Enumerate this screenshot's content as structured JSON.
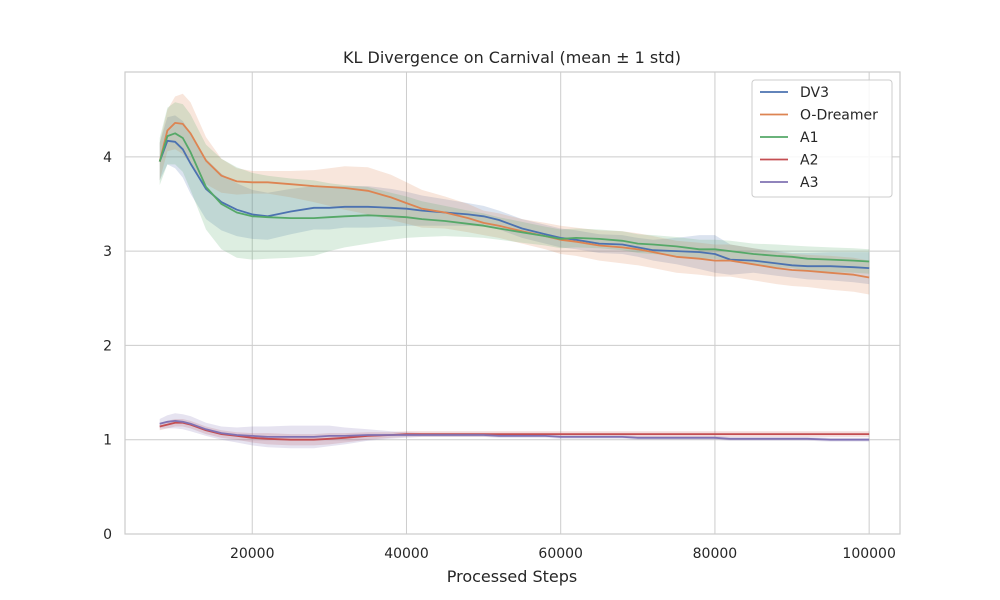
{
  "chart_data": {
    "type": "line",
    "title": "KL Divergence on Carnival (mean ± 1 std)",
    "xlabel": "Processed Steps",
    "ylabel": "",
    "xlim": [
      3500,
      104000
    ],
    "ylim": [
      0,
      4.9
    ],
    "xticks": [
      20000,
      40000,
      60000,
      80000,
      100000
    ],
    "yticks": [
      0,
      1,
      2,
      3,
      4
    ],
    "grid": true,
    "legend_position": "top-right",
    "x": [
      8000,
      9000,
      10000,
      11000,
      12000,
      14000,
      16000,
      18000,
      20000,
      22000,
      25000,
      28000,
      30000,
      32000,
      35000,
      38000,
      40000,
      42000,
      45000,
      48000,
      50000,
      52000,
      55000,
      58000,
      60000,
      62000,
      65000,
      68000,
      70000,
      72000,
      75000,
      78000,
      80000,
      82000,
      85000,
      88000,
      90000,
      92000,
      95000,
      98000,
      100000
    ],
    "series": [
      {
        "name": "DV3",
        "color": "#4c72b0",
        "values": [
          3.95,
          4.17,
          4.16,
          4.08,
          3.93,
          3.66,
          3.52,
          3.44,
          3.39,
          3.37,
          3.42,
          3.46,
          3.46,
          3.47,
          3.47,
          3.46,
          3.45,
          3.43,
          3.41,
          3.39,
          3.37,
          3.33,
          3.24,
          3.18,
          3.14,
          3.12,
          3.08,
          3.07,
          3.04,
          3.01,
          3.0,
          2.99,
          2.97,
          2.91,
          2.9,
          2.87,
          2.85,
          2.84,
          2.84,
          2.83,
          2.82
        ],
        "std": [
          0.2,
          0.25,
          0.28,
          0.3,
          0.32,
          0.32,
          0.3,
          0.28,
          0.26,
          0.25,
          0.24,
          0.23,
          0.23,
          0.22,
          0.22,
          0.2,
          0.18,
          0.16,
          0.14,
          0.12,
          0.11,
          0.1,
          0.1,
          0.1,
          0.1,
          0.1,
          0.1,
          0.1,
          0.1,
          0.11,
          0.14,
          0.18,
          0.2,
          0.16,
          0.13,
          0.13,
          0.13,
          0.14,
          0.15,
          0.16,
          0.17
        ]
      },
      {
        "name": "O-Dreamer",
        "color": "#dd8452",
        "values": [
          3.95,
          4.28,
          4.36,
          4.35,
          4.25,
          3.96,
          3.8,
          3.74,
          3.73,
          3.73,
          3.71,
          3.69,
          3.68,
          3.67,
          3.64,
          3.57,
          3.51,
          3.45,
          3.41,
          3.35,
          3.3,
          3.27,
          3.21,
          3.16,
          3.12,
          3.1,
          3.06,
          3.04,
          3.02,
          2.99,
          2.94,
          2.92,
          2.9,
          2.9,
          2.86,
          2.82,
          2.8,
          2.79,
          2.77,
          2.75,
          2.72
        ],
        "std": [
          0.2,
          0.22,
          0.28,
          0.32,
          0.33,
          0.25,
          0.18,
          0.14,
          0.12,
          0.12,
          0.14,
          0.17,
          0.2,
          0.23,
          0.25,
          0.24,
          0.22,
          0.2,
          0.17,
          0.15,
          0.13,
          0.13,
          0.13,
          0.14,
          0.15,
          0.15,
          0.16,
          0.17,
          0.17,
          0.17,
          0.17,
          0.17,
          0.17,
          0.17,
          0.17,
          0.17,
          0.17,
          0.17,
          0.18,
          0.18,
          0.18
        ]
      },
      {
        "name": "A1",
        "color": "#55a868",
        "values": [
          3.95,
          4.22,
          4.25,
          4.2,
          4.05,
          3.68,
          3.5,
          3.41,
          3.37,
          3.36,
          3.35,
          3.35,
          3.36,
          3.37,
          3.38,
          3.37,
          3.36,
          3.34,
          3.32,
          3.29,
          3.27,
          3.24,
          3.2,
          3.16,
          3.13,
          3.14,
          3.13,
          3.11,
          3.08,
          3.07,
          3.05,
          3.02,
          3.02,
          3.0,
          2.97,
          2.95,
          2.94,
          2.92,
          2.91,
          2.9,
          2.89
        ],
        "std": [
          0.25,
          0.3,
          0.33,
          0.36,
          0.4,
          0.45,
          0.48,
          0.48,
          0.46,
          0.44,
          0.42,
          0.4,
          0.36,
          0.33,
          0.3,
          0.25,
          0.22,
          0.19,
          0.16,
          0.14,
          0.13,
          0.12,
          0.11,
          0.1,
          0.1,
          0.1,
          0.1,
          0.1,
          0.1,
          0.1,
          0.1,
          0.1,
          0.1,
          0.11,
          0.11,
          0.12,
          0.12,
          0.13,
          0.13,
          0.13,
          0.13
        ]
      },
      {
        "name": "A2",
        "color": "#c44e52",
        "values": [
          1.14,
          1.16,
          1.18,
          1.18,
          1.16,
          1.1,
          1.06,
          1.04,
          1.02,
          1.01,
          1.0,
          1.0,
          1.01,
          1.02,
          1.04,
          1.05,
          1.06,
          1.06,
          1.06,
          1.06,
          1.06,
          1.06,
          1.06,
          1.06,
          1.06,
          1.06,
          1.06,
          1.06,
          1.06,
          1.06,
          1.06,
          1.06,
          1.06,
          1.06,
          1.06,
          1.06,
          1.06,
          1.06,
          1.06,
          1.06,
          1.06
        ],
        "std": [
          0.04,
          0.04,
          0.04,
          0.04,
          0.04,
          0.04,
          0.04,
          0.04,
          0.05,
          0.06,
          0.06,
          0.06,
          0.06,
          0.05,
          0.04,
          0.03,
          0.03,
          0.03,
          0.03,
          0.03,
          0.03,
          0.03,
          0.03,
          0.03,
          0.03,
          0.03,
          0.03,
          0.03,
          0.03,
          0.03,
          0.03,
          0.03,
          0.03,
          0.03,
          0.03,
          0.03,
          0.03,
          0.03,
          0.03,
          0.03,
          0.03
        ]
      },
      {
        "name": "A3",
        "color": "#8172b3",
        "values": [
          1.17,
          1.19,
          1.2,
          1.19,
          1.17,
          1.11,
          1.07,
          1.05,
          1.04,
          1.03,
          1.03,
          1.03,
          1.04,
          1.04,
          1.05,
          1.05,
          1.05,
          1.05,
          1.05,
          1.05,
          1.05,
          1.04,
          1.04,
          1.04,
          1.03,
          1.03,
          1.03,
          1.03,
          1.02,
          1.02,
          1.02,
          1.02,
          1.02,
          1.01,
          1.01,
          1.01,
          1.01,
          1.01,
          1.0,
          1.0,
          1.0
        ],
        "std": [
          0.05,
          0.07,
          0.08,
          0.08,
          0.08,
          0.07,
          0.07,
          0.08,
          0.1,
          0.11,
          0.12,
          0.12,
          0.11,
          0.09,
          0.06,
          0.04,
          0.03,
          0.02,
          0.02,
          0.02,
          0.02,
          0.02,
          0.02,
          0.02,
          0.02,
          0.02,
          0.02,
          0.02,
          0.02,
          0.02,
          0.02,
          0.02,
          0.02,
          0.02,
          0.02,
          0.02,
          0.02,
          0.02,
          0.02,
          0.02,
          0.02
        ]
      }
    ]
  }
}
